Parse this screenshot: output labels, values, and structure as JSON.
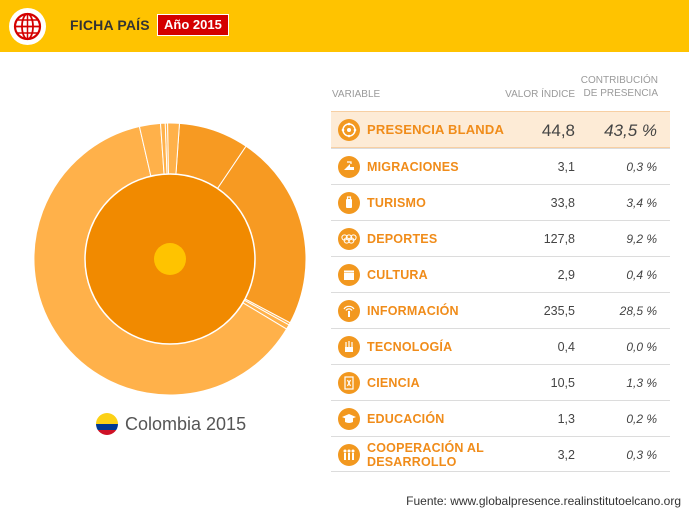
{
  "header": {
    "title": "FICHA PAÍS",
    "year_badge": "Año 2015",
    "logo_icon": "globe-icon"
  },
  "colors": {
    "header_bg": "#ffc300",
    "badge_bg": "#d40000",
    "accent": "#f08c1a",
    "highlight_row": "#fdebd6"
  },
  "table": {
    "headers": {
      "variable": "VARIABLE",
      "value": "VALOR ÍNDICE",
      "contribution_line1": "CONTRIBUCIÓN",
      "contribution_line2": "DE PRESENCIA"
    },
    "rows": [
      {
        "icon": "soft-presence-icon",
        "name": "PRESENCIA BLANDA",
        "value": "44,8",
        "contribution": "43,5 %"
      },
      {
        "icon": "migration-icon",
        "name": "MIGRACIONES",
        "value": "3,1",
        "contribution": "0,3 %"
      },
      {
        "icon": "tourism-icon",
        "name": "TURISMO",
        "value": "33,8",
        "contribution": "3,4 %"
      },
      {
        "icon": "olympic-rings-icon",
        "name": "DEPORTES",
        "value": "127,8",
        "contribution": "9,2 %"
      },
      {
        "icon": "clapperboard-icon",
        "name": "CULTURA",
        "value": "2,9",
        "contribution": "0,4 %"
      },
      {
        "icon": "information-icon",
        "name": "INFORMACIÓN",
        "value": "235,5",
        "contribution": "28,5 %"
      },
      {
        "icon": "technology-icon",
        "name": "TECNOLOGÍA",
        "value": "0,4",
        "contribution": "0,0 %"
      },
      {
        "icon": "science-icon",
        "name": "CIENCIA",
        "value": "10,5",
        "contribution": "1,3 %"
      },
      {
        "icon": "graduation-cap-icon",
        "name": "EDUCACIÓN",
        "value": "1,3",
        "contribution": "0,2 %"
      },
      {
        "icon": "cooperation-icon",
        "name": "COOPERACIÓN AL DESARROLLO",
        "name_line1": "COOPERACIÓN AL",
        "name_line2": "DESARROLLO",
        "value": "3,2",
        "contribution": "0,3 %"
      }
    ]
  },
  "donut": {
    "country": "Colombia 2015",
    "flag_icon": "colombia-flag-icon",
    "outer_colors": [
      "#ffb14a",
      "#f79a22"
    ],
    "inner_color": "#f18a00",
    "center_color": "#ffc300"
  },
  "footer": {
    "source": "Fuente: www.globalpresence.realinstitutoelcano.org"
  }
}
